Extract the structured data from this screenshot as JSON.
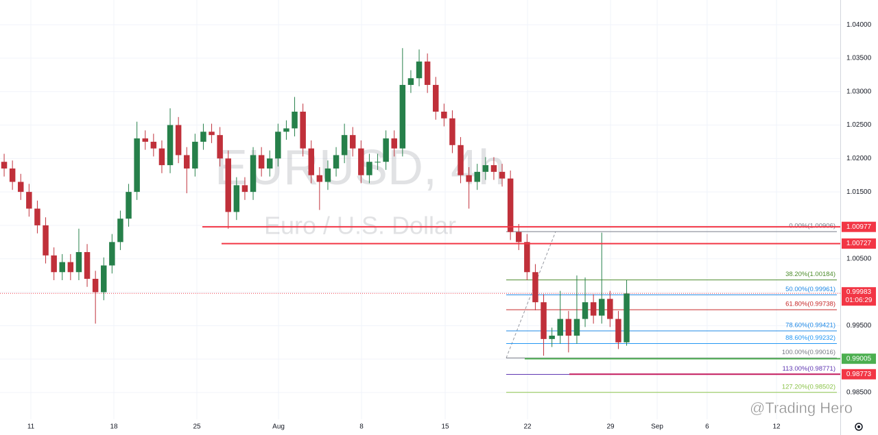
{
  "chart_data": {
    "type": "candlestick",
    "watermark": {
      "symbol": "EURUSD, 4h",
      "description": "Euro / U.S. Dollar"
    },
    "credit": "@Trading Hero",
    "up_color": "#26804a",
    "down_color": "#c0303a",
    "grid": true,
    "xlim": [
      0,
      50.62
    ],
    "xticks": [
      {
        "value": 1.86,
        "label": "11"
      },
      {
        "value": 6.86,
        "label": "18"
      },
      {
        "value": 11.86,
        "label": "25"
      },
      {
        "value": 16.78,
        "label": "Aug"
      },
      {
        "value": 21.78,
        "label": "8"
      },
      {
        "value": 26.82,
        "label": "15"
      },
      {
        "value": 31.78,
        "label": "22"
      },
      {
        "value": 36.78,
        "label": "29"
      },
      {
        "value": 39.59,
        "label": "Sep"
      },
      {
        "value": 42.6,
        "label": "6"
      },
      {
        "value": 46.78,
        "label": "12"
      }
    ],
    "ylim": [
      0.981,
      1.0437
    ],
    "yticks": [
      {
        "value": 0.985,
        "label": "0.98500"
      },
      {
        "value": 0.99,
        "label": "0.99000"
      },
      {
        "value": 0.995,
        "label": "0.99500"
      },
      {
        "value": 1.0,
        "label": "1.00000"
      },
      {
        "value": 1.005,
        "label": "1.00500"
      },
      {
        "value": 1.01,
        "label": "1.01000"
      },
      {
        "value": 1.015,
        "label": "1.01500"
      },
      {
        "value": 1.02,
        "label": "1.02000"
      },
      {
        "value": 1.025,
        "label": "1.02500"
      },
      {
        "value": 1.03,
        "label": "1.03000"
      },
      {
        "value": 1.035,
        "label": "1.03500"
      },
      {
        "value": 1.04,
        "label": "1.04000"
      }
    ],
    "x": [
      0.25,
      0.75,
      1.25,
      1.75,
      2.25,
      2.75,
      3.25,
      3.75,
      4.25,
      4.75,
      5.25,
      5.75,
      6.25,
      6.75,
      7.25,
      7.75,
      8.25,
      8.75,
      9.25,
      9.75,
      10.25,
      10.75,
      11.25,
      11.75,
      12.25,
      12.75,
      13.25,
      13.75,
      14.25,
      14.75,
      15.25,
      15.75,
      16.25,
      16.75,
      17.25,
      17.75,
      18.25,
      18.75,
      19.25,
      19.75,
      20.25,
      20.75,
      21.25,
      21.75,
      22.25,
      22.75,
      23.25,
      23.75,
      24.25,
      24.75,
      25.25,
      25.75,
      26.25,
      26.75,
      27.25,
      27.75,
      28.25,
      28.75,
      29.25,
      29.75,
      30.25,
      30.75,
      31.25,
      31.75,
      32.25,
      32.75,
      33.25,
      33.75,
      34.25,
      34.75,
      35.25,
      35.75,
      36.25,
      36.75,
      37.25,
      37.75
    ],
    "open": [
      1.0195,
      1.0185,
      1.0165,
      1.015,
      1.0125,
      1.01,
      1.0055,
      1.003,
      1.0045,
      1.003,
      1.006,
      1.002,
      1.0,
      1.004,
      1.0075,
      1.011,
      1.015,
      1.023,
      1.0225,
      1.0215,
      1.019,
      1.025,
      1.0205,
      1.0185,
      1.0225,
      1.024,
      1.0235,
      1.02,
      1.012,
      1.016,
      1.015,
      1.0205,
      1.0185,
      1.02,
      1.024,
      1.0245,
      1.027,
      1.0215,
      1.0175,
      1.0165,
      1.0185,
      1.0205,
      1.0235,
      1.0215,
      1.0175,
      1.0195,
      1.0195,
      1.023,
      1.0215,
      1.031,
      1.032,
      1.0345,
      1.031,
      1.027,
      1.026,
      1.022,
      1.0175,
      1.0165,
      1.018,
      1.019,
      1.018,
      1.017,
      1.009,
      1.0075,
      1.003,
      0.9985,
      0.993,
      0.9935,
      0.996,
      0.9935,
      0.996,
      0.9985,
      0.9965,
      0.999,
      0.996,
      0.9925
    ],
    "high": [
      1.0207,
      1.0197,
      1.0177,
      1.0162,
      1.0137,
      1.0112,
      1.0067,
      1.0057,
      1.0057,
      1.0095,
      1.0072,
      1.0032,
      1.0052,
      1.0087,
      1.0122,
      1.0162,
      1.0255,
      1.0242,
      1.0237,
      1.0227,
      1.0275,
      1.0262,
      1.0217,
      1.0237,
      1.0252,
      1.0252,
      1.0247,
      1.0212,
      1.0172,
      1.0172,
      1.0217,
      1.0217,
      1.0212,
      1.0252,
      1.0257,
      1.0292,
      1.0282,
      1.0227,
      1.0187,
      1.0197,
      1.0217,
      1.0252,
      1.0247,
      1.0227,
      1.0207,
      1.0207,
      1.0242,
      1.0242,
      1.0365,
      1.0332,
      1.0363,
      1.0357,
      1.0322,
      1.0282,
      1.0272,
      1.0232,
      1.0187,
      1.0192,
      1.0202,
      1.0202,
      1.0192,
      1.0182,
      1.0102,
      1.0087,
      1.0042,
      0.9997,
      0.9947,
      1.0002,
      0.9972,
      1.0025,
      1.0022,
      0.9997,
      1.0089,
      1.0002,
      0.9972,
      1.0018
    ],
    "low": [
      1.0173,
      1.0153,
      1.0138,
      1.0113,
      1.0088,
      1.0043,
      1.0018,
      1.0018,
      1.0018,
      1.0018,
      1.0008,
      0.9953,
      0.9988,
      1.0028,
      1.0063,
      1.0098,
      1.0138,
      1.0213,
      1.0203,
      1.0178,
      1.0178,
      1.0193,
      1.0148,
      1.0173,
      1.0213,
      1.0223,
      1.0188,
      1.0095,
      1.0108,
      1.0138,
      1.0138,
      1.0173,
      1.0173,
      1.0188,
      1.0228,
      1.0233,
      1.0203,
      1.0163,
      1.0123,
      1.0153,
      1.0173,
      1.0193,
      1.0203,
      1.0163,
      1.0163,
      1.0183,
      1.0183,
      1.0203,
      1.0203,
      1.0298,
      1.0308,
      1.0298,
      1.0258,
      1.0248,
      1.0208,
      1.0163,
      1.0125,
      1.0153,
      1.0168,
      1.0168,
      1.0158,
      1.0078,
      1.0063,
      1.0018,
      0.9973,
      0.9905,
      0.9918,
      0.9923,
      0.991,
      0.9923,
      0.9948,
      0.9953,
      0.9953,
      0.9948,
      0.9915,
      0.992
    ],
    "close": [
      1.0185,
      1.0165,
      1.015,
      1.0125,
      1.01,
      1.0055,
      1.003,
      1.0045,
      1.003,
      1.006,
      1.002,
      1.0,
      1.004,
      1.0075,
      1.011,
      1.015,
      1.023,
      1.0225,
      1.0215,
      1.019,
      1.025,
      1.0205,
      1.0185,
      1.0225,
      1.024,
      1.0235,
      1.02,
      1.012,
      1.016,
      1.015,
      1.0205,
      1.0185,
      1.02,
      1.024,
      1.0245,
      1.027,
      1.0215,
      1.0175,
      1.0165,
      1.0185,
      1.0205,
      1.0235,
      1.0215,
      1.0175,
      1.0195,
      1.0195,
      1.023,
      1.0215,
      1.031,
      1.032,
      1.0345,
      1.031,
      1.027,
      1.026,
      1.022,
      1.0175,
      1.0165,
      1.018,
      1.019,
      1.018,
      1.017,
      1.009,
      1.0075,
      1.003,
      0.9985,
      0.993,
      0.9935,
      0.996,
      0.9935,
      0.996,
      0.9985,
      0.9965,
      0.999,
      0.996,
      0.9925,
      0.9998
    ],
    "hlines": [
      {
        "value": 1.00977,
        "color": "#f23645"
      },
      {
        "value": 1.00727,
        "color": "#f23645"
      },
      {
        "value": 0.99005,
        "color": "#4caf50"
      },
      {
        "value": 0.98773,
        "color": "#c2185b",
        "label_color": "#f23645"
      }
    ],
    "fib": [
      {
        "label": "0.00%(1.00906)",
        "value": 1.00906,
        "color": "#787b86"
      },
      {
        "label": "38.20%(1.00184)",
        "value": 1.00184,
        "color": "#4c8c2b"
      },
      {
        "label": "50.00%(0.99961)",
        "value": 0.99961,
        "color": "#1e88e5"
      },
      {
        "label": "61.80%(0.99738)",
        "value": 0.99738,
        "color": "#c62828"
      },
      {
        "label": "78.60%(0.99421)",
        "value": 0.99421,
        "color": "#1e88e5"
      },
      {
        "label": "88.60%(0.99232)",
        "value": 0.99232,
        "color": "#2196f3"
      },
      {
        "label": "100.00%(0.99016)",
        "value": 0.99016,
        "color": "#787b86"
      },
      {
        "label": "113.00%(0.98771)",
        "value": 0.98771,
        "color": "#5e35b1"
      },
      {
        "label": "127.20%(0.98502)",
        "value": 0.98502,
        "color": "#8bc34a"
      }
    ],
    "last_price": {
      "value": 0.99983,
      "countdown": "01:06:29",
      "color": "#f23645"
    }
  }
}
